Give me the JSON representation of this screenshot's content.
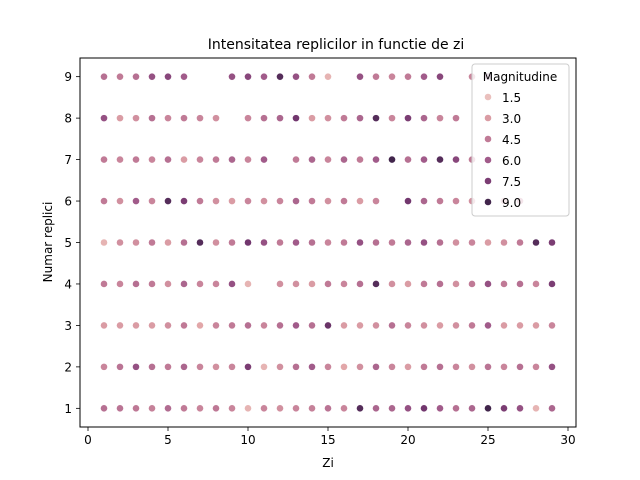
{
  "chart_data": {
    "type": "scatter",
    "title": "Intensitatea replicilor in functie de zi",
    "xlabel": "Zi",
    "ylabel": "Numar replici",
    "xlim": [
      -0.5,
      30.5
    ],
    "ylim": [
      0.55,
      9.45
    ],
    "xticks": [
      0,
      5,
      10,
      15,
      20,
      25,
      30
    ],
    "yticks": [
      1,
      2,
      3,
      4,
      5,
      6,
      7,
      8,
      9
    ],
    "grid": false,
    "legend": {
      "title": "Magnitudine",
      "placement": "top-right",
      "entries": [
        {
          "label": "1.5",
          "value": 1.5
        },
        {
          "label": "3.0",
          "value": 3.0
        },
        {
          "label": "4.5",
          "value": 4.5
        },
        {
          "label": "6.0",
          "value": 6.0
        },
        {
          "label": "7.5",
          "value": 7.5
        },
        {
          "label": "9.0",
          "value": 9.0
        }
      ]
    },
    "color_scale": {
      "min": 0.8,
      "max": 9.5,
      "stops": [
        "#f0d2cb",
        "#e2a6a8",
        "#c47f98",
        "#a15b8a",
        "#74386f",
        "#2c1e3d"
      ]
    },
    "points": [
      {
        "x": 1,
        "y": 1,
        "m": 5.0
      },
      {
        "x": 2,
        "y": 1,
        "m": 4.8
      },
      {
        "x": 3,
        "y": 1,
        "m": 4.6
      },
      {
        "x": 4,
        "y": 1,
        "m": 4.2
      },
      {
        "x": 5,
        "y": 1,
        "m": 5.2
      },
      {
        "x": 6,
        "y": 1,
        "m": 4.5
      },
      {
        "x": 7,
        "y": 1,
        "m": 4.0
      },
      {
        "x": 8,
        "y": 1,
        "m": 4.6
      },
      {
        "x": 9,
        "y": 1,
        "m": 4.0
      },
      {
        "x": 10,
        "y": 1,
        "m": 2.0
      },
      {
        "x": 11,
        "y": 1,
        "m": 4.0
      },
      {
        "x": 12,
        "y": 1,
        "m": 3.5
      },
      {
        "x": 13,
        "y": 1,
        "m": 4.0
      },
      {
        "x": 14,
        "y": 1,
        "m": 4.2
      },
      {
        "x": 15,
        "y": 1,
        "m": 4.8
      },
      {
        "x": 16,
        "y": 1,
        "m": 4.0
      },
      {
        "x": 17,
        "y": 1,
        "m": 8.5
      },
      {
        "x": 18,
        "y": 1,
        "m": 5.5
      },
      {
        "x": 19,
        "y": 1,
        "m": 5.5
      },
      {
        "x": 20,
        "y": 1,
        "m": 6.5
      },
      {
        "x": 21,
        "y": 1,
        "m": 7.8
      },
      {
        "x": 22,
        "y": 1,
        "m": 6.0
      },
      {
        "x": 23,
        "y": 1,
        "m": 5.0
      },
      {
        "x": 24,
        "y": 1,
        "m": 5.5
      },
      {
        "x": 25,
        "y": 1,
        "m": 9.0
      },
      {
        "x": 26,
        "y": 1,
        "m": 7.5
      },
      {
        "x": 27,
        "y": 1,
        "m": 6.5
      },
      {
        "x": 28,
        "y": 1,
        "m": 2.0
      },
      {
        "x": 29,
        "y": 1,
        "m": 5.5
      },
      {
        "x": 1,
        "y": 2,
        "m": 4.0
      },
      {
        "x": 2,
        "y": 2,
        "m": 4.8
      },
      {
        "x": 3,
        "y": 2,
        "m": 6.5
      },
      {
        "x": 4,
        "y": 2,
        "m": 5.0
      },
      {
        "x": 5,
        "y": 2,
        "m": 4.5
      },
      {
        "x": 6,
        "y": 2,
        "m": 5.5
      },
      {
        "x": 7,
        "y": 2,
        "m": 4.0
      },
      {
        "x": 8,
        "y": 2,
        "m": 3.5
      },
      {
        "x": 9,
        "y": 2,
        "m": 4.0
      },
      {
        "x": 10,
        "y": 2,
        "m": 7.5
      },
      {
        "x": 11,
        "y": 2,
        "m": 2.0
      },
      {
        "x": 12,
        "y": 2,
        "m": 3.5
      },
      {
        "x": 13,
        "y": 2,
        "m": 5.0
      },
      {
        "x": 14,
        "y": 2,
        "m": 6.0
      },
      {
        "x": 15,
        "y": 2,
        "m": 4.0
      },
      {
        "x": 16,
        "y": 2,
        "m": 2.5
      },
      {
        "x": 17,
        "y": 2,
        "m": 3.5
      },
      {
        "x": 18,
        "y": 2,
        "m": 5.5
      },
      {
        "x": 19,
        "y": 2,
        "m": 4.0
      },
      {
        "x": 20,
        "y": 2,
        "m": 3.0
      },
      {
        "x": 21,
        "y": 2,
        "m": 4.5
      },
      {
        "x": 22,
        "y": 2,
        "m": 5.0
      },
      {
        "x": 23,
        "y": 2,
        "m": 4.0
      },
      {
        "x": 24,
        "y": 2,
        "m": 3.5
      },
      {
        "x": 25,
        "y": 2,
        "m": 4.8
      },
      {
        "x": 26,
        "y": 2,
        "m": 4.0
      },
      {
        "x": 27,
        "y": 2,
        "m": 5.0
      },
      {
        "x": 28,
        "y": 2,
        "m": 4.0
      },
      {
        "x": 29,
        "y": 2,
        "m": 6.5
      },
      {
        "x": 1,
        "y": 3,
        "m": 3.0
      },
      {
        "x": 2,
        "y": 3,
        "m": 3.0
      },
      {
        "x": 3,
        "y": 3,
        "m": 3.0
      },
      {
        "x": 4,
        "y": 3,
        "m": 3.0
      },
      {
        "x": 5,
        "y": 3,
        "m": 3.5
      },
      {
        "x": 6,
        "y": 3,
        "m": 4.5
      },
      {
        "x": 7,
        "y": 3,
        "m": 2.5
      },
      {
        "x": 8,
        "y": 3,
        "m": 4.0
      },
      {
        "x": 9,
        "y": 3,
        "m": 4.5
      },
      {
        "x": 10,
        "y": 3,
        "m": 5.0
      },
      {
        "x": 11,
        "y": 3,
        "m": 4.0
      },
      {
        "x": 12,
        "y": 3,
        "m": 5.0
      },
      {
        "x": 13,
        "y": 3,
        "m": 6.0
      },
      {
        "x": 14,
        "y": 3,
        "m": 5.0
      },
      {
        "x": 15,
        "y": 3,
        "m": 8.0
      },
      {
        "x": 16,
        "y": 3,
        "m": 3.0
      },
      {
        "x": 17,
        "y": 3,
        "m": 3.0
      },
      {
        "x": 18,
        "y": 3,
        "m": 3.5
      },
      {
        "x": 19,
        "y": 3,
        "m": 5.0
      },
      {
        "x": 20,
        "y": 3,
        "m": 4.0
      },
      {
        "x": 21,
        "y": 3,
        "m": 3.5
      },
      {
        "x": 22,
        "y": 3,
        "m": 3.0
      },
      {
        "x": 23,
        "y": 3,
        "m": 3.5
      },
      {
        "x": 24,
        "y": 3,
        "m": 4.5
      },
      {
        "x": 25,
        "y": 3,
        "m": 6.0
      },
      {
        "x": 26,
        "y": 3,
        "m": 3.0
      },
      {
        "x": 27,
        "y": 3,
        "m": 3.0
      },
      {
        "x": 28,
        "y": 3,
        "m": 3.0
      },
      {
        "x": 29,
        "y": 3,
        "m": 4.0
      },
      {
        "x": 1,
        "y": 4,
        "m": 4.5
      },
      {
        "x": 2,
        "y": 4,
        "m": 4.0
      },
      {
        "x": 3,
        "y": 4,
        "m": 5.0
      },
      {
        "x": 4,
        "y": 4,
        "m": 4.5
      },
      {
        "x": 5,
        "y": 4,
        "m": 3.5
      },
      {
        "x": 6,
        "y": 4,
        "m": 5.5
      },
      {
        "x": 7,
        "y": 4,
        "m": 4.0
      },
      {
        "x": 8,
        "y": 4,
        "m": 4.0
      },
      {
        "x": 9,
        "y": 4,
        "m": 6.5
      },
      {
        "x": 10,
        "y": 4,
        "m": 2.0
      },
      {
        "x": 12,
        "y": 4,
        "m": 3.5
      },
      {
        "x": 13,
        "y": 4,
        "m": 3.5
      },
      {
        "x": 14,
        "y": 4,
        "m": 3.0
      },
      {
        "x": 15,
        "y": 4,
        "m": 4.5
      },
      {
        "x": 16,
        "y": 4,
        "m": 4.0
      },
      {
        "x": 17,
        "y": 4,
        "m": 5.0
      },
      {
        "x": 18,
        "y": 4,
        "m": 8.5
      },
      {
        "x": 19,
        "y": 4,
        "m": 3.5
      },
      {
        "x": 20,
        "y": 4,
        "m": 3.0
      },
      {
        "x": 21,
        "y": 4,
        "m": 4.5
      },
      {
        "x": 22,
        "y": 4,
        "m": 5.0
      },
      {
        "x": 23,
        "y": 4,
        "m": 3.5
      },
      {
        "x": 24,
        "y": 4,
        "m": 4.5
      },
      {
        "x": 25,
        "y": 4,
        "m": 6.5
      },
      {
        "x": 26,
        "y": 4,
        "m": 4.5
      },
      {
        "x": 27,
        "y": 4,
        "m": 5.0
      },
      {
        "x": 28,
        "y": 4,
        "m": 4.0
      },
      {
        "x": 29,
        "y": 4,
        "m": 7.5
      },
      {
        "x": 1,
        "y": 5,
        "m": 2.0
      },
      {
        "x": 2,
        "y": 5,
        "m": 3.5
      },
      {
        "x": 3,
        "y": 5,
        "m": 3.5
      },
      {
        "x": 4,
        "y": 5,
        "m": 4.5
      },
      {
        "x": 5,
        "y": 5,
        "m": 3.0
      },
      {
        "x": 6,
        "y": 5,
        "m": 5.0
      },
      {
        "x": 7,
        "y": 5,
        "m": 8.5
      },
      {
        "x": 8,
        "y": 5,
        "m": 3.5
      },
      {
        "x": 9,
        "y": 5,
        "m": 4.5
      },
      {
        "x": 10,
        "y": 5,
        "m": 7.8
      },
      {
        "x": 11,
        "y": 5,
        "m": 6.5
      },
      {
        "x": 12,
        "y": 5,
        "m": 4.5
      },
      {
        "x": 13,
        "y": 5,
        "m": 6.0
      },
      {
        "x": 14,
        "y": 5,
        "m": 5.0
      },
      {
        "x": 15,
        "y": 5,
        "m": 4.0
      },
      {
        "x": 16,
        "y": 5,
        "m": 4.5
      },
      {
        "x": 17,
        "y": 5,
        "m": 6.5
      },
      {
        "x": 18,
        "y": 5,
        "m": 5.0
      },
      {
        "x": 19,
        "y": 5,
        "m": 4.5
      },
      {
        "x": 20,
        "y": 5,
        "m": 5.5
      },
      {
        "x": 21,
        "y": 5,
        "m": 6.5
      },
      {
        "x": 22,
        "y": 5,
        "m": 5.0
      },
      {
        "x": 23,
        "y": 5,
        "m": 3.5
      },
      {
        "x": 24,
        "y": 5,
        "m": 4.0
      },
      {
        "x": 25,
        "y": 5,
        "m": 3.0
      },
      {
        "x": 26,
        "y": 5,
        "m": 3.5
      },
      {
        "x": 27,
        "y": 5,
        "m": 4.5
      },
      {
        "x": 28,
        "y": 5,
        "m": 8.5
      },
      {
        "x": 29,
        "y": 5,
        "m": 7.5
      },
      {
        "x": 1,
        "y": 6,
        "m": 4.5
      },
      {
        "x": 2,
        "y": 6,
        "m": 3.5
      },
      {
        "x": 3,
        "y": 6,
        "m": 6.0
      },
      {
        "x": 4,
        "y": 6,
        "m": 4.0
      },
      {
        "x": 5,
        "y": 6,
        "m": 8.5
      },
      {
        "x": 6,
        "y": 6,
        "m": 7.5
      },
      {
        "x": 7,
        "y": 6,
        "m": 4.5
      },
      {
        "x": 8,
        "y": 6,
        "m": 3.5
      },
      {
        "x": 9,
        "y": 6,
        "m": 3.0
      },
      {
        "x": 10,
        "y": 6,
        "m": 4.0
      },
      {
        "x": 11,
        "y": 6,
        "m": 3.5
      },
      {
        "x": 12,
        "y": 6,
        "m": 4.0
      },
      {
        "x": 13,
        "y": 6,
        "m": 5.5
      },
      {
        "x": 14,
        "y": 6,
        "m": 4.5
      },
      {
        "x": 15,
        "y": 6,
        "m": 3.5
      },
      {
        "x": 16,
        "y": 6,
        "m": 4.5
      },
      {
        "x": 17,
        "y": 6,
        "m": 3.0
      },
      {
        "x": 18,
        "y": 6,
        "m": 4.0
      },
      {
        "x": 20,
        "y": 6,
        "m": 7.8
      },
      {
        "x": 21,
        "y": 6,
        "m": 5.5
      },
      {
        "x": 22,
        "y": 6,
        "m": 4.5
      },
      {
        "x": 23,
        "y": 6,
        "m": 4.0
      },
      {
        "x": 24,
        "y": 6,
        "m": 3.5
      },
      {
        "x": 25,
        "y": 6,
        "m": 3.0
      },
      {
        "x": 26,
        "y": 6,
        "m": 4.0
      },
      {
        "x": 27,
        "y": 6,
        "m": 4.5
      },
      {
        "x": 1,
        "y": 7,
        "m": 4.5
      },
      {
        "x": 2,
        "y": 7,
        "m": 4.0
      },
      {
        "x": 3,
        "y": 7,
        "m": 4.5
      },
      {
        "x": 4,
        "y": 7,
        "m": 4.0
      },
      {
        "x": 5,
        "y": 7,
        "m": 5.0
      },
      {
        "x": 6,
        "y": 7,
        "m": 3.0
      },
      {
        "x": 7,
        "y": 7,
        "m": 4.0
      },
      {
        "x": 8,
        "y": 7,
        "m": 4.5
      },
      {
        "x": 9,
        "y": 7,
        "m": 5.5
      },
      {
        "x": 10,
        "y": 7,
        "m": 4.0
      },
      {
        "x": 11,
        "y": 7,
        "m": 6.0
      },
      {
        "x": 13,
        "y": 7,
        "m": 4.5
      },
      {
        "x": 14,
        "y": 7,
        "m": 5.5
      },
      {
        "x": 15,
        "y": 7,
        "m": 4.0
      },
      {
        "x": 16,
        "y": 7,
        "m": 5.5
      },
      {
        "x": 17,
        "y": 7,
        "m": 4.5
      },
      {
        "x": 18,
        "y": 7,
        "m": 6.0
      },
      {
        "x": 19,
        "y": 7,
        "m": 9.0
      },
      {
        "x": 20,
        "y": 7,
        "m": 5.0
      },
      {
        "x": 21,
        "y": 7,
        "m": 6.0
      },
      {
        "x": 22,
        "y": 7,
        "m": 8.5
      },
      {
        "x": 23,
        "y": 7,
        "m": 7.0
      },
      {
        "x": 24,
        "y": 7,
        "m": 4.5
      },
      {
        "x": 1,
        "y": 8,
        "m": 6.5
      },
      {
        "x": 2,
        "y": 8,
        "m": 3.0
      },
      {
        "x": 3,
        "y": 8,
        "m": 3.5
      },
      {
        "x": 4,
        "y": 8,
        "m": 5.0
      },
      {
        "x": 5,
        "y": 8,
        "m": 4.0
      },
      {
        "x": 6,
        "y": 8,
        "m": 4.5
      },
      {
        "x": 7,
        "y": 8,
        "m": 4.0
      },
      {
        "x": 8,
        "y": 8,
        "m": 3.5
      },
      {
        "x": 10,
        "y": 8,
        "m": 4.0
      },
      {
        "x": 11,
        "y": 8,
        "m": 5.0
      },
      {
        "x": 12,
        "y": 8,
        "m": 5.5
      },
      {
        "x": 13,
        "y": 8,
        "m": 7.8
      },
      {
        "x": 14,
        "y": 8,
        "m": 3.0
      },
      {
        "x": 15,
        "y": 8,
        "m": 3.5
      },
      {
        "x": 16,
        "y": 8,
        "m": 4.5
      },
      {
        "x": 17,
        "y": 8,
        "m": 5.5
      },
      {
        "x": 18,
        "y": 8,
        "m": 8.5
      },
      {
        "x": 19,
        "y": 8,
        "m": 4.0
      },
      {
        "x": 20,
        "y": 8,
        "m": 7.5
      },
      {
        "x": 21,
        "y": 8,
        "m": 5.5
      },
      {
        "x": 22,
        "y": 8,
        "m": 4.0
      },
      {
        "x": 23,
        "y": 8,
        "m": 4.5
      },
      {
        "x": 1,
        "y": 9,
        "m": 5.0
      },
      {
        "x": 2,
        "y": 9,
        "m": 4.5
      },
      {
        "x": 3,
        "y": 9,
        "m": 5.0
      },
      {
        "x": 4,
        "y": 9,
        "m": 6.5
      },
      {
        "x": 5,
        "y": 9,
        "m": 7.0
      },
      {
        "x": 6,
        "y": 9,
        "m": 6.0
      },
      {
        "x": 9,
        "y": 9,
        "m": 6.5
      },
      {
        "x": 10,
        "y": 9,
        "m": 7.0
      },
      {
        "x": 11,
        "y": 9,
        "m": 6.0
      },
      {
        "x": 12,
        "y": 9,
        "m": 8.5
      },
      {
        "x": 13,
        "y": 9,
        "m": 6.5
      },
      {
        "x": 14,
        "y": 9,
        "m": 4.5
      },
      {
        "x": 15,
        "y": 9,
        "m": 2.0
      },
      {
        "x": 17,
        "y": 9,
        "m": 6.5
      },
      {
        "x": 18,
        "y": 9,
        "m": 4.5
      },
      {
        "x": 19,
        "y": 9,
        "m": 4.0
      },
      {
        "x": 20,
        "y": 9,
        "m": 4.5
      },
      {
        "x": 21,
        "y": 9,
        "m": 6.0
      },
      {
        "x": 22,
        "y": 9,
        "m": 7.0
      },
      {
        "x": 24,
        "y": 9,
        "m": 4.0
      },
      {
        "x": 25,
        "y": 9,
        "m": 7.5
      }
    ]
  }
}
